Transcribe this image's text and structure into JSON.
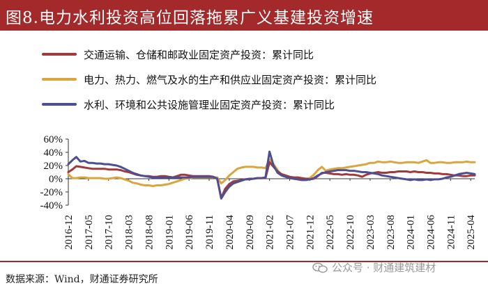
{
  "title": "图8.电力水利投资高位回落拖累广义基建投资增速",
  "source": "数据来源：Wind，财通证券研究所",
  "watermark": "公众号 · 财通建筑建材",
  "colors": {
    "title_bg": "#a3292b",
    "transport": "#a23a3b",
    "power": "#d9a53c",
    "water": "#4d4f92"
  },
  "chart_data": {
    "type": "line",
    "ylim": [
      -40,
      60
    ],
    "yticks": [
      "60%",
      "40%",
      "20%",
      "0%",
      "-20%",
      "-40%"
    ],
    "ytick_values": [
      60,
      40,
      20,
      0,
      -20,
      -40
    ],
    "xtick_labels": [
      "2016-12",
      "2017-05",
      "2017-10",
      "2018-03",
      "2018-08",
      "2019-01",
      "2019-06",
      "2019-11",
      "2020-04",
      "2020-09",
      "2021-02",
      "2021-07",
      "2021-12",
      "2022-05",
      "2022-10",
      "2023-03",
      "2023-08",
      "2024-01",
      "2024-06",
      "2024-11",
      "2025-04"
    ],
    "x": [
      "2016-12",
      "2017-01",
      "2017-02",
      "2017-03",
      "2017-04",
      "2017-05",
      "2017-06",
      "2017-07",
      "2017-08",
      "2017-09",
      "2017-10",
      "2017-11",
      "2017-12",
      "2018-01",
      "2018-02",
      "2018-03",
      "2018-04",
      "2018-05",
      "2018-06",
      "2018-07",
      "2018-08",
      "2018-09",
      "2018-10",
      "2018-11",
      "2018-12",
      "2019-01",
      "2019-02",
      "2019-03",
      "2019-04",
      "2019-05",
      "2019-06",
      "2019-07",
      "2019-08",
      "2019-09",
      "2019-10",
      "2019-11",
      "2019-12",
      "2020-01",
      "2020-02",
      "2020-03",
      "2020-04",
      "2020-05",
      "2020-06",
      "2020-07",
      "2020-08",
      "2020-09",
      "2020-10",
      "2020-11",
      "2020-12",
      "2021-01",
      "2021-02",
      "2021-03",
      "2021-04",
      "2021-05",
      "2021-06",
      "2021-07",
      "2021-08",
      "2021-09",
      "2021-10",
      "2021-11",
      "2021-12",
      "2022-01",
      "2022-02",
      "2022-03",
      "2022-04",
      "2022-05",
      "2022-06",
      "2022-07",
      "2022-08",
      "2022-09",
      "2022-10",
      "2022-11",
      "2022-12",
      "2023-01",
      "2023-02",
      "2023-03",
      "2023-04",
      "2023-05",
      "2023-06",
      "2023-07",
      "2023-08",
      "2023-09",
      "2023-10",
      "2023-11",
      "2023-12",
      "2024-01",
      "2024-02",
      "2024-03",
      "2024-04",
      "2024-05",
      "2024-06",
      "2024-07",
      "2024-08",
      "2024-09",
      "2024-10",
      "2024-11",
      "2024-12",
      "2025-01",
      "2025-02",
      "2025-03",
      "2025-04",
      "2025-05"
    ],
    "series": [
      {
        "name": "交通运输、仓储和邮政业固定资产投资：累计同比",
        "color_key": "transport",
        "values": [
          10,
          14,
          19,
          18,
          17,
          16,
          15,
          15,
          15,
          15,
          14,
          14,
          14,
          13,
          11,
          10,
          8,
          6,
          5,
          4,
          4,
          3,
          3,
          4,
          4,
          3,
          2,
          4,
          6,
          6,
          5,
          4,
          4,
          4,
          4,
          4,
          3,
          0,
          -29,
          -15,
          -8,
          -4,
          -3,
          -2,
          -1,
          -1,
          0,
          1,
          1,
          1,
          25,
          18,
          11,
          7,
          5,
          3,
          2,
          2,
          1,
          0,
          -1,
          0,
          4,
          9,
          9,
          8,
          7,
          7,
          6,
          7,
          6,
          6,
          5,
          3,
          6,
          8,
          9,
          10,
          9,
          9,
          10,
          10,
          11,
          11,
          11,
          10,
          11,
          10,
          10,
          9,
          9,
          8,
          8,
          7,
          7,
          6,
          5,
          5,
          4,
          4,
          5,
          5
        ]
      },
      {
        "name": "电力、热力、燃气及水的生产和供应业固定资产投资：累计同比",
        "color_key": "power",
        "values": [
          7,
          1,
          1,
          2,
          2,
          1,
          1,
          1,
          1,
          0,
          0,
          1,
          2,
          1,
          -1,
          -3,
          -6,
          -7,
          -9,
          -10,
          -10,
          -11,
          -10,
          -10,
          -9,
          -8,
          -6,
          -4,
          -2,
          0,
          1,
          2,
          2,
          2,
          2,
          2,
          2,
          2,
          -7,
          -2,
          5,
          10,
          15,
          17,
          18,
          18,
          18,
          17,
          17,
          16,
          29,
          22,
          13,
          5,
          3,
          2,
          1,
          1,
          0,
          0,
          1,
          6,
          13,
          18,
          12,
          14,
          15,
          16,
          16,
          17,
          18,
          19,
          20,
          21,
          22,
          24,
          24,
          26,
          25,
          25,
          26,
          25,
          24,
          24,
          25,
          25,
          25,
          24,
          26,
          28,
          24,
          24,
          25,
          25,
          24,
          24,
          25,
          25,
          25,
          26,
          25,
          25
        ]
      },
      {
        "name": "水利、环境和公共设施管理业固定资产投资：累计同比",
        "color_key": "water",
        "values": [
          22,
          28,
          33,
          26,
          27,
          24,
          24,
          23,
          23,
          22,
          22,
          21,
          20,
          18,
          15,
          12,
          9,
          7,
          5,
          4,
          3,
          2,
          2,
          2,
          2,
          2,
          2,
          2,
          2,
          2,
          2,
          3,
          3,
          3,
          3,
          3,
          3,
          0,
          -30,
          -20,
          -12,
          -7,
          -5,
          -3,
          -1,
          0,
          0,
          1,
          1,
          2,
          41,
          20,
          9,
          5,
          3,
          1,
          0,
          -1,
          -2,
          -2,
          -1,
          1,
          5,
          8,
          10,
          11,
          12,
          13,
          13,
          13,
          12,
          12,
          11,
          10,
          10,
          9,
          8,
          7,
          5,
          4,
          3,
          2,
          1,
          0,
          -1,
          -2,
          -1,
          -2,
          -2,
          -1,
          -2,
          -1,
          -1,
          0,
          2,
          3,
          5,
          7,
          8,
          9,
          8,
          7
        ]
      }
    ]
  }
}
